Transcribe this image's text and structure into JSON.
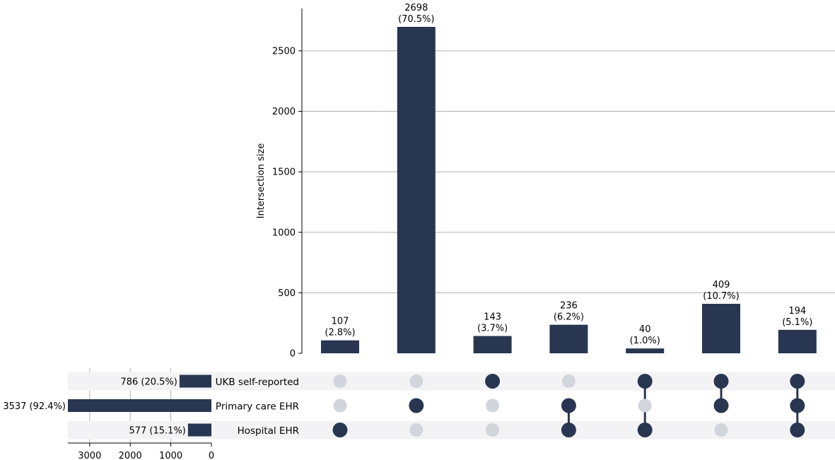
{
  "chart_data": {
    "type": "bar",
    "chart_kind": "upset",
    "title": "",
    "ylabel": "Intersection size",
    "ylim": [
      0,
      2850
    ],
    "yticks": [
      0,
      500,
      1000,
      1500,
      2000,
      2500
    ],
    "grid": true,
    "bar_color": "#283651",
    "inactive_dot_color": "#d2d5dc",
    "stripe_color": "#f3f3f5",
    "sets": [
      {
        "name": "UKB self-reported",
        "size": 786,
        "label": "786 (20.5%)"
      },
      {
        "name": "Primary care EHR",
        "size": 3537,
        "label": "3537 (92.4%)"
      },
      {
        "name": "Hospital EHR",
        "size": 577,
        "label": "577 (15.1%)"
      }
    ],
    "set_size_xlim": [
      0,
      3537
    ],
    "set_size_ticks": [
      3000,
      2000,
      1000,
      0
    ],
    "intersections": [
      {
        "value": 107,
        "count_label": "107",
        "pct_label": "(2.8%)",
        "members": [
          false,
          false,
          true
        ]
      },
      {
        "value": 2698,
        "count_label": "2698",
        "pct_label": "(70.5%)",
        "members": [
          false,
          true,
          false
        ]
      },
      {
        "value": 143,
        "count_label": "143",
        "pct_label": "(3.7%)",
        "members": [
          true,
          false,
          false
        ]
      },
      {
        "value": 236,
        "count_label": "236",
        "pct_label": "(6.2%)",
        "members": [
          false,
          true,
          true
        ]
      },
      {
        "value": 40,
        "count_label": "40",
        "pct_label": "(1.0%)",
        "members": [
          true,
          false,
          true
        ]
      },
      {
        "value": 409,
        "count_label": "409",
        "pct_label": "(10.7%)",
        "members": [
          true,
          true,
          false
        ]
      },
      {
        "value": 194,
        "count_label": "194",
        "pct_label": "(5.1%)",
        "members": [
          true,
          true,
          true
        ]
      }
    ]
  }
}
